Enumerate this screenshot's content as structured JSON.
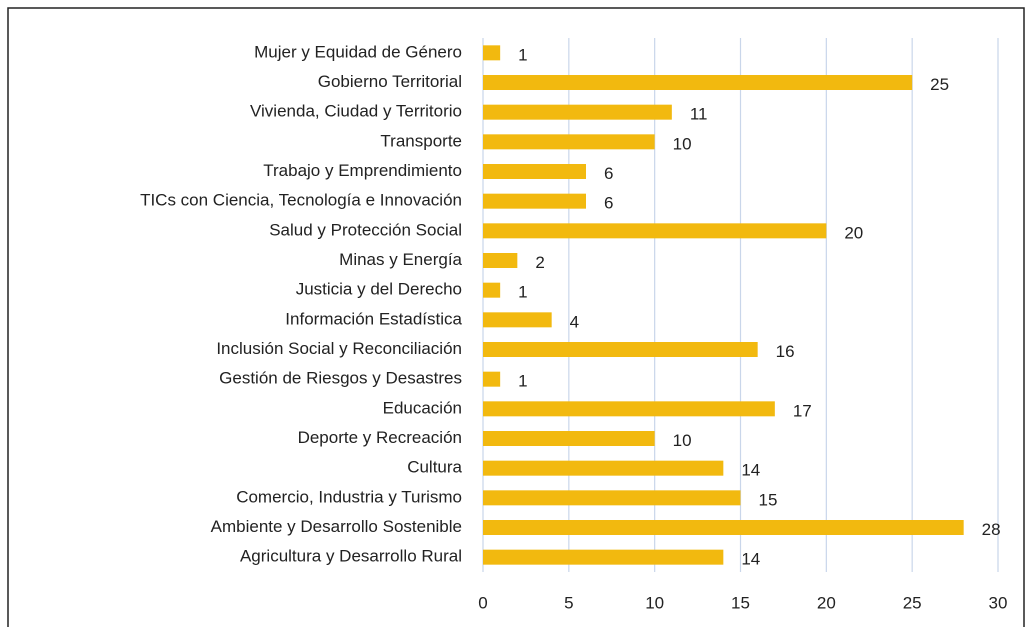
{
  "chart_data": {
    "type": "bar",
    "orientation": "horizontal",
    "categories": [
      "Mujer y Equidad de Género",
      "Gobierno Territorial",
      "Vivienda, Ciudad y Territorio",
      "Transporte",
      "Trabajo y Emprendimiento",
      "TICs con Ciencia, Tecnología e Innovación",
      "Salud y Protección Social",
      "Minas y Energía",
      "Justicia y del Derecho",
      "Información Estadística",
      "Inclusión Social y Reconciliación",
      "Gestión de Riesgos y Desastres",
      "Educación",
      "Deporte y Recreación",
      "Cultura",
      "Comercio, Industria y Turismo",
      "Ambiente y Desarrollo Sostenible",
      "Agricultura y Desarrollo Rural"
    ],
    "values": [
      1,
      25,
      11,
      10,
      6,
      6,
      20,
      2,
      1,
      4,
      16,
      1,
      17,
      10,
      14,
      15,
      28,
      14
    ],
    "color": "#f2b90f",
    "xlim": [
      0,
      30
    ],
    "xticks": [
      0,
      5,
      10,
      15,
      20,
      25,
      30
    ],
    "grid": true
  }
}
